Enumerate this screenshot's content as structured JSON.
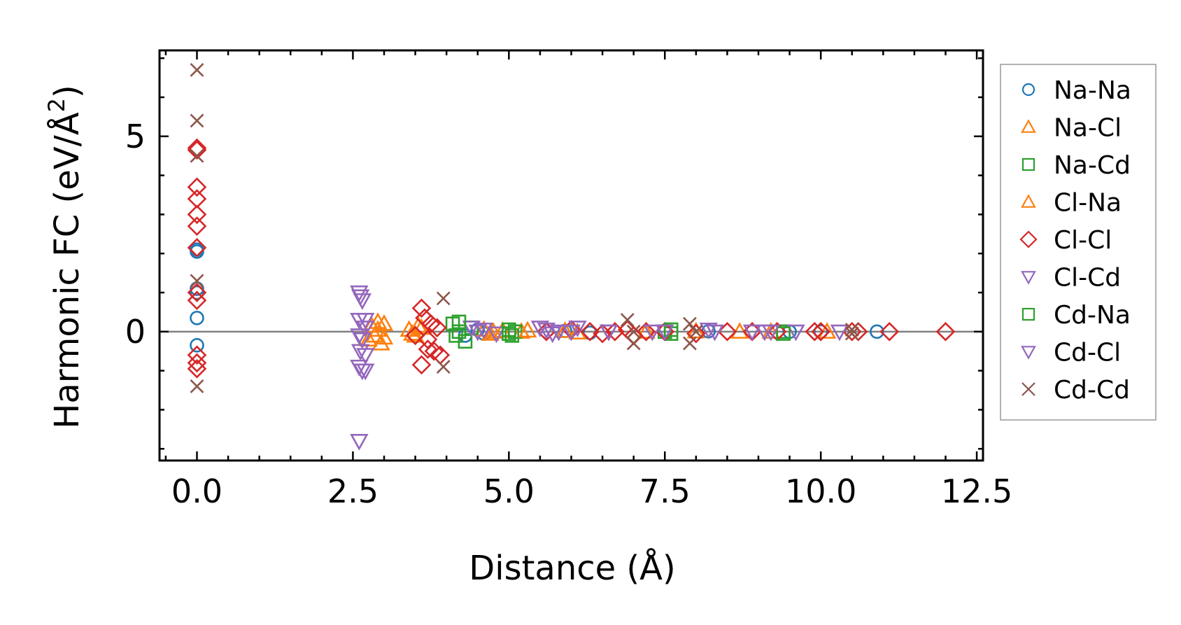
{
  "chart_data": {
    "type": "scatter",
    "xlabel": "Distance (Å)",
    "ylabel_prefix": "Harmonic FC (eV/Å",
    "ylabel_exp": "2",
    "ylabel_suffix": ")",
    "xlim": [
      -0.6,
      12.6
    ],
    "ylim": [
      -3.3,
      7.2
    ],
    "xticks": [
      0,
      2.5,
      5,
      7.5,
      10,
      12.5
    ],
    "xtick_labels": [
      "0.0",
      "2.5",
      "5.0",
      "7.5",
      "10.0",
      "12.5"
    ],
    "yticks": [
      0,
      5
    ],
    "ytick_labels": [
      "0",
      "5"
    ],
    "zero_line": true,
    "legend_position": "outside-right",
    "series": [
      {
        "name": "Na-Na",
        "marker": "circle",
        "color": "#1f77b4",
        "x": [
          0,
          0,
          0,
          0,
          0,
          0,
          4.3,
          4.5,
          4.6,
          5.9,
          6.3,
          7.5,
          8.2,
          9.5,
          10.0,
          10.9
        ],
        "y": [
          2.1,
          1.1,
          1.0,
          0.35,
          -0.35,
          2.05,
          -0.1,
          0.05,
          -0.05,
          0.02,
          -0.03,
          0.02,
          0.01,
          0,
          0,
          0
        ]
      },
      {
        "name": "Na-Cl",
        "marker": "triangle-up",
        "color": "#ff7f0e",
        "x": [
          2.8,
          2.85,
          2.9,
          2.95,
          3.0,
          3.4,
          3.5,
          3.6,
          4.6,
          4.7,
          4.9,
          5.2,
          5.9,
          7.2,
          8.0,
          8.7,
          9.2,
          10.1
        ],
        "y": [
          0.15,
          -0.1,
          0.05,
          -0.3,
          0.2,
          0.05,
          -0.1,
          0.1,
          0.05,
          -0.05,
          0.02,
          0.0,
          0.02,
          0.0,
          0.01,
          0.0,
          0.0,
          0.0
        ]
      },
      {
        "name": "Na-Cd",
        "marker": "square",
        "color": "#2ca02c",
        "x": [
          4.1,
          4.15,
          4.2,
          4.3,
          4.4,
          5.0,
          5.05,
          5.1,
          7.5,
          7.6,
          9.4
        ],
        "y": [
          0.2,
          -0.1,
          0.0,
          -0.25,
          0.1,
          0.05,
          -0.1,
          0.0,
          0.0,
          -0.05,
          0.0
        ]
      },
      {
        "name": "Cl-Na",
        "marker": "triangle-up",
        "color": "#ff7f0e",
        "x": [
          2.75,
          2.9,
          3.0,
          3.45,
          3.55,
          4.75,
          5.3,
          6.1
        ],
        "y": [
          -0.2,
          0.25,
          -0.15,
          -0.05,
          0.15,
          0.0,
          0.03,
          -0.02
        ]
      },
      {
        "name": "Cl-Cl",
        "marker": "diamond",
        "color": "#d62728",
        "x": [
          0,
          0,
          0,
          0,
          0,
          0,
          0,
          0,
          0,
          0,
          0,
          0,
          3.5,
          3.6,
          3.65,
          3.7,
          3.75,
          3.8,
          3.85,
          3.6,
          3.7,
          3.9,
          5.6,
          6.0,
          6.3,
          6.5,
          6.7,
          6.9,
          7.0,
          7.2,
          7.5,
          8.0,
          8.5,
          8.9,
          9.3,
          9.9,
          10.0,
          10.5,
          10.6,
          11.1,
          12.0
        ],
        "y": [
          4.7,
          3.7,
          3.4,
          3.0,
          2.7,
          2.15,
          1.0,
          0.8,
          -0.6,
          -0.8,
          -0.95,
          4.65,
          -0.1,
          0.6,
          0.35,
          -0.2,
          0.2,
          -0.5,
          0.1,
          -0.85,
          -0.45,
          -0.6,
          0.0,
          0.05,
          0.0,
          -0.05,
          0.0,
          0.05,
          -0.1,
          0.0,
          0.0,
          -0.05,
          0.0,
          0.0,
          0.0,
          0.0,
          0.0,
          0.0,
          0.0,
          0.0,
          0.0
        ]
      },
      {
        "name": "Cl-Cd",
        "marker": "triangle-down",
        "color": "#9467bd",
        "x": [
          2.6,
          2.62,
          2.65,
          2.7,
          2.6,
          2.65,
          2.7,
          2.62,
          2.6,
          2.65,
          2.7,
          2.6,
          4.4,
          4.6,
          4.8,
          5.5,
          5.7,
          6.0,
          6.1,
          6.6,
          7.3,
          8.2,
          8.9,
          9.1,
          9.6,
          10.3
        ],
        "y": [
          1.0,
          0.9,
          0.8,
          0.3,
          -0.1,
          -0.2,
          0.1,
          -0.5,
          -0.9,
          -1.0,
          -1.0,
          -2.8,
          0.1,
          0.05,
          -0.05,
          0.1,
          -0.05,
          0.0,
          0.1,
          0.0,
          0.0,
          0.05,
          0.0,
          0.0,
          0.0,
          0.0
        ]
      },
      {
        "name": "Cd-Na",
        "marker": "square",
        "color": "#2ca02c",
        "x": [
          4.2,
          5.0,
          7.6,
          9.4
        ],
        "y": [
          0.25,
          -0.05,
          0.05,
          -0.05
        ]
      },
      {
        "name": "Cd-Cl",
        "marker": "triangle-down",
        "color": "#9467bd",
        "x": [
          2.6,
          2.7,
          4.5,
          5.6,
          5.8,
          6.6,
          7.5,
          8.3,
          9.2
        ],
        "y": [
          0.3,
          -0.6,
          0.0,
          0.05,
          0.0,
          0.0,
          0.0,
          0.0,
          0.0
        ]
      },
      {
        "name": "Cd-Cd",
        "marker": "x",
        "color": "#8c564b",
        "x": [
          0,
          0,
          0,
          0,
          0,
          3.95,
          3.95,
          6.9,
          7.0,
          7.0,
          7.9,
          7.9,
          8.0,
          10.5,
          10.5
        ],
        "y": [
          6.7,
          5.4,
          4.5,
          1.3,
          -1.4,
          0.85,
          -0.9,
          0.3,
          -0.3,
          0.0,
          0.2,
          -0.3,
          0.0,
          0.05,
          -0.05
        ]
      }
    ]
  }
}
